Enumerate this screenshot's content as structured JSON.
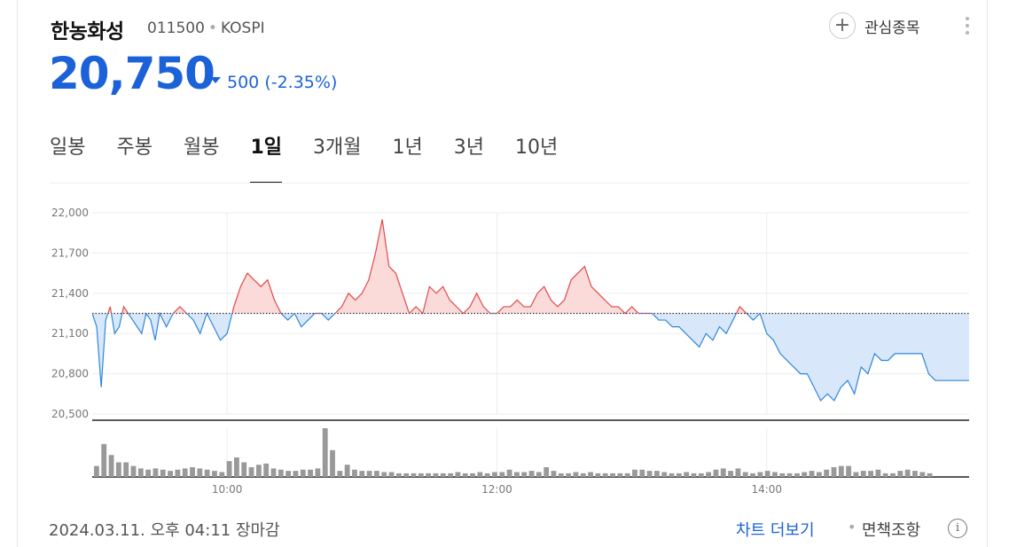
{
  "stock": {
    "name": "한농화성",
    "code": "011500",
    "market": "KOSPI",
    "price": "20,750",
    "change_amount": "500",
    "change_percent": "(-2.35%)",
    "direction": "down",
    "down_color": "#1b62d8",
    "up_color": "#e24a4a"
  },
  "watchlist": {
    "icon": "plus-icon",
    "label": "관심종목"
  },
  "more_icon": "kebab-icon",
  "tabs": [
    {
      "label": "일봉",
      "active": false
    },
    {
      "label": "주봉",
      "active": false
    },
    {
      "label": "월봉",
      "active": false
    },
    {
      "label": "1일",
      "active": true
    },
    {
      "label": "3개월",
      "active": false
    },
    {
      "label": "1년",
      "active": false
    },
    {
      "label": "3년",
      "active": false
    },
    {
      "label": "10년",
      "active": false
    }
  ],
  "chart_data": {
    "type": "line",
    "baseline": 21250,
    "ylim": [
      20500,
      22000
    ],
    "yticks": [
      "22,000",
      "21,700",
      "21,400",
      "21,100",
      "20,800",
      "20,500"
    ],
    "xticks": [
      "10:00",
      "12:00",
      "14:00"
    ],
    "xlim": [
      "09:00",
      "15:30"
    ],
    "grid": true,
    "above_color": "#e24a4a",
    "below_color": "#2f86dd",
    "series": [
      {
        "x": [
          "09:00",
          "09:02",
          "09:04",
          "09:06",
          "09:08",
          "09:10",
          "09:12",
          "09:14",
          "09:16",
          "09:18",
          "09:20",
          "09:22",
          "09:24",
          "09:26",
          "09:28",
          "09:30",
          "09:33",
          "09:36",
          "09:39",
          "09:42",
          "09:45",
          "09:48",
          "09:51",
          "09:54",
          "09:57",
          "10:00",
          "10:03",
          "10:06",
          "10:09",
          "10:12",
          "10:15",
          "10:18",
          "10:21",
          "10:24",
          "10:27",
          "10:30",
          "10:33",
          "10:36",
          "10:39",
          "10:42",
          "10:45",
          "10:48",
          "10:51",
          "10:54",
          "10:57",
          "11:00",
          "11:03",
          "11:06",
          "11:09",
          "11:12",
          "11:15",
          "11:18",
          "11:21",
          "11:24",
          "11:27",
          "11:30",
          "11:33",
          "11:36",
          "11:39",
          "11:42",
          "11:45",
          "11:48",
          "11:51",
          "11:54",
          "11:57",
          "12:00",
          "12:03",
          "12:06",
          "12:09",
          "12:12",
          "12:15",
          "12:18",
          "12:21",
          "12:24",
          "12:27",
          "12:30",
          "12:33",
          "12:36",
          "12:39",
          "12:42",
          "12:45",
          "12:48",
          "12:51",
          "12:54",
          "12:57",
          "13:00",
          "13:03",
          "13:06",
          "13:09",
          "13:12",
          "13:15",
          "13:18",
          "13:21",
          "13:24",
          "13:27",
          "13:30",
          "13:33",
          "13:36",
          "13:39",
          "13:42",
          "13:45",
          "13:48",
          "13:51",
          "13:54",
          "13:57",
          "14:00",
          "14:03",
          "14:06",
          "14:09",
          "14:12",
          "14:15",
          "14:18",
          "14:21",
          "14:24",
          "14:27",
          "14:30",
          "14:33",
          "14:36",
          "14:39",
          "14:42",
          "14:45",
          "14:48",
          "14:51",
          "14:54",
          "14:57",
          "15:00",
          "15:03",
          "15:06",
          "15:09",
          "15:12",
          "15:15",
          "15:18",
          "15:21",
          "15:24",
          "15:30"
        ],
        "values": [
          21250,
          21150,
          20700,
          21200,
          21300,
          21100,
          21150,
          21300,
          21250,
          21200,
          21150,
          21100,
          21250,
          21200,
          21050,
          21250,
          21150,
          21250,
          21300,
          21250,
          21200,
          21100,
          21250,
          21150,
          21050,
          21100,
          21300,
          21450,
          21550,
          21500,
          21450,
          21500,
          21350,
          21250,
          21200,
          21250,
          21150,
          21200,
          21250,
          21250,
          21200,
          21250,
          21300,
          21400,
          21350,
          21400,
          21500,
          21700,
          21950,
          21600,
          21550,
          21400,
          21250,
          21300,
          21250,
          21450,
          21400,
          21450,
          21350,
          21300,
          21250,
          21300,
          21400,
          21300,
          21250,
          21250,
          21300,
          21300,
          21350,
          21300,
          21300,
          21400,
          21450,
          21350,
          21300,
          21350,
          21500,
          21550,
          21600,
          21450,
          21400,
          21350,
          21300,
          21300,
          21250,
          21300,
          21250,
          21250,
          21250,
          21200,
          21200,
          21150,
          21150,
          21100,
          21050,
          21000,
          21100,
          21050,
          21150,
          21100,
          21200,
          21300,
          21250,
          21200,
          21250,
          21100,
          21050,
          20950,
          20900,
          20850,
          20800,
          20800,
          20700,
          20600,
          20650,
          20600,
          20700,
          20750,
          20650,
          20850,
          20800,
          20950,
          20900,
          20900,
          20950,
          20950,
          20950,
          20950,
          20950,
          20800,
          20750,
          20750,
          20750,
          20750,
          20750
        ]
      }
    ],
    "volume": [
      9,
      27,
      18,
      12,
      12,
      9,
      7,
      6,
      7,
      6,
      5,
      6,
      7,
      8,
      7,
      6,
      5,
      4,
      13,
      16,
      12,
      8,
      10,
      11,
      7,
      6,
      5,
      5,
      6,
      6,
      7,
      40,
      22,
      5,
      10,
      6,
      5,
      5,
      5,
      4,
      4,
      3,
      3,
      3,
      3,
      3,
      3,
      3,
      3,
      4,
      3,
      3,
      4,
      3,
      4,
      4,
      6,
      4,
      4,
      5,
      4,
      8,
      5,
      3,
      3,
      4,
      3,
      4,
      3,
      3,
      3,
      3,
      3,
      6,
      6,
      5,
      5,
      4,
      3,
      3,
      4,
      3,
      3,
      4,
      6,
      7,
      5,
      7,
      4,
      3,
      4,
      5,
      4,
      3,
      3,
      3,
      4,
      5,
      4,
      6,
      8,
      9,
      9,
      4,
      5,
      5,
      6,
      3,
      3,
      5,
      6,
      5,
      4,
      3
    ]
  },
  "footer": {
    "timestamp": "2024.03.11. 오후 04:11 장마감",
    "more_chart": "차트 더보기",
    "separator": "•",
    "disclaimer": "면책조항",
    "info_icon": "i"
  }
}
